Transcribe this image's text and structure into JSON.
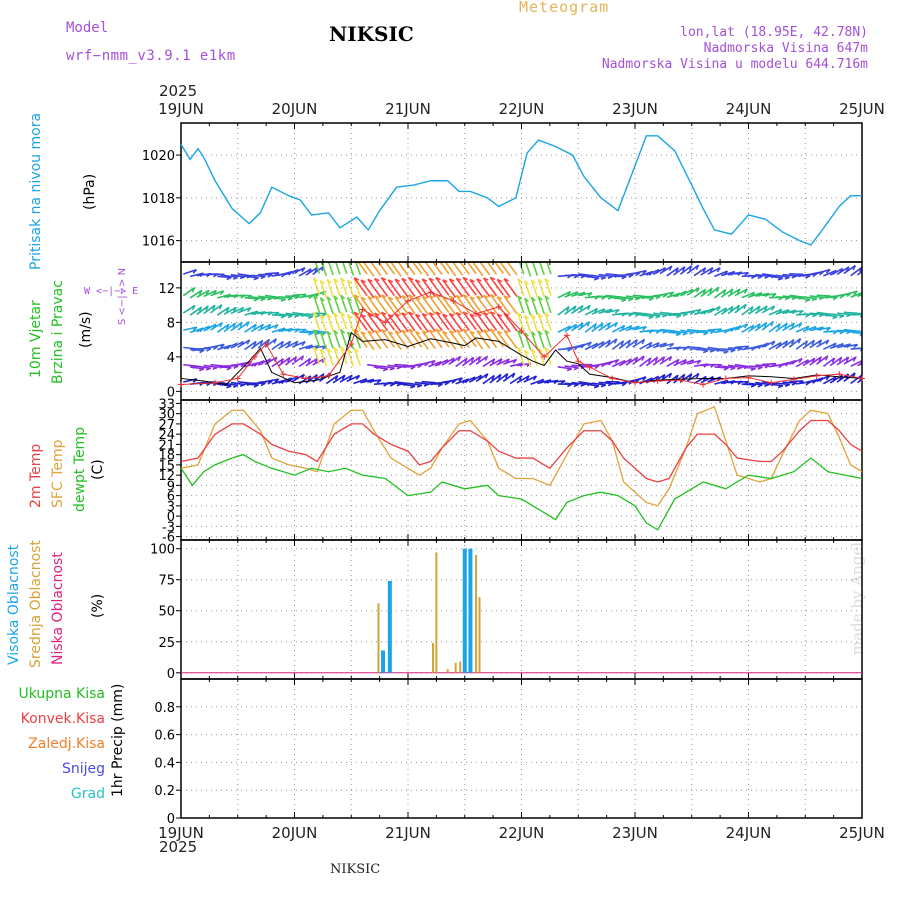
{
  "header": {
    "title": "NIKSIC",
    "product": "Meteogram",
    "model_label": "Model",
    "model_name": "wrf−nmm_v3.9.1  e1km",
    "lonlat": "lon,lat (18.95E, 42.78N)",
    "elevation": "Nadmorska Visina 647m",
    "model_elevation": "Nadmorska Visina u modelu 644.716m"
  },
  "year_top": "2025",
  "year_bottom": "2025",
  "footer_station": "NIKSIC",
  "credit": "made by Angel",
  "days": [
    "19JUN",
    "20JUN",
    "21JUN",
    "22JUN",
    "23JUN",
    "24JUN",
    "25JUN"
  ],
  "colors": {
    "pressure": "#1ba4e6",
    "temp2m": "#ec4040",
    "sfc": "#e3a13a",
    "dew": "#22c021",
    "high_cloud": "#1ba4e6",
    "mid_cloud": "#d8a135",
    "low_cloud": "#e0227a",
    "wind_line": "#000000",
    "gust": "#ee3030",
    "purple": "#a450d8"
  },
  "panel_labels": {
    "pressure": {
      "name": "Pritisak na nivou mora",
      "unit": "(hPa)"
    },
    "wind": {
      "name1": "10m Vjetar",
      "name2": "Brzina i Pravac",
      "unit": "(m/s)",
      "compass": "W  <−|−>  E",
      "compass2": "S <−|−> N"
    },
    "temp": {
      "name1": "2m Temp",
      "name2": "SFC Temp",
      "name3": "dewpt Temp",
      "unit": "(C)"
    },
    "cloud": {
      "name1": "Visoka Oblacnost",
      "name2": "Srednja Oblacnost",
      "name3": "Niska Oblacnost",
      "unit": "(%)"
    },
    "precip": {
      "items": [
        "Ukupna Kisa",
        "Konvek.Kisa",
        "Zaledj.Kisa",
        "Snijeg",
        "Grad"
      ],
      "colors": [
        "#22c021",
        "#ec4040",
        "#f07f28",
        "#4b4be0",
        "#25c4c4"
      ],
      "unit": "1hr Precip (mm)"
    }
  },
  "chart_data": [
    {
      "type": "line",
      "title": "",
      "ylabel": "Pritisak na nivou mora (hPa)",
      "ylim": [
        1015,
        1021.5
      ],
      "yticks": [
        "1016",
        "1018",
        "1020"
      ],
      "x_unit": "days from 19JUN 00",
      "series": [
        {
          "name": "Pritisak na nivou mora",
          "x": [
            0,
            0.08,
            0.15,
            0.2,
            0.3,
            0.45,
            0.6,
            0.7,
            0.8,
            0.95,
            1.05,
            1.15,
            1.3,
            1.4,
            1.55,
            1.65,
            1.75,
            1.9,
            2.05,
            2.2,
            2.35,
            2.45,
            2.55,
            2.7,
            2.8,
            2.95,
            3.05,
            3.15,
            3.3,
            3.45,
            3.55,
            3.7,
            3.85,
            4.0,
            4.1,
            4.2,
            4.35,
            4.5,
            4.6,
            4.7,
            4.85,
            5.0,
            5.15,
            5.3,
            5.45,
            5.55,
            5.65,
            5.8,
            5.9,
            6.0
          ],
          "y": [
            1020.5,
            1019.8,
            1020.3,
            1019.9,
            1018.8,
            1017.5,
            1016.8,
            1017.3,
            1018.5,
            1018.1,
            1017.9,
            1017.2,
            1017.3,
            1016.6,
            1017.1,
            1016.5,
            1017.4,
            1018.5,
            1018.6,
            1018.8,
            1018.8,
            1018.3,
            1018.3,
            1018.0,
            1017.6,
            1018.0,
            1020.1,
            1020.7,
            1020.4,
            1020.0,
            1019.0,
            1018.0,
            1017.4,
            1019.5,
            1020.9,
            1020.9,
            1020.2,
            1018.6,
            1017.5,
            1016.5,
            1016.3,
            1017.2,
            1017.0,
            1016.4,
            1016.0,
            1015.8,
            1016.5,
            1017.6,
            1018.1,
            1018.1
          ]
        }
      ]
    },
    {
      "type": "line",
      "title": "",
      "ylabel": "10m Vjetar Brzina i Pravac (m/s)",
      "ylim": [
        -1,
        15
      ],
      "yticks": [
        "0",
        "4",
        "8",
        "12"
      ],
      "x_unit": "days from 19JUN 00",
      "series": [
        {
          "name": "Brzina",
          "x": [
            0,
            0.2,
            0.4,
            0.6,
            0.7,
            0.8,
            1.0,
            1.2,
            1.4,
            1.5,
            1.6,
            1.8,
            2.0,
            2.2,
            2.4,
            2.5,
            2.6,
            2.8,
            3.0,
            3.1,
            3.2,
            3.3,
            3.4,
            3.5,
            3.6,
            3.8,
            4.0,
            4.2,
            4.4,
            4.6,
            4.8,
            5.0,
            5.2,
            5.4,
            5.6,
            5.8,
            6.0
          ],
          "y": [
            1.5,
            1.2,
            0.8,
            3.5,
            5.0,
            2.2,
            1.0,
            1.3,
            2.2,
            6.8,
            5.8,
            6.0,
            5.2,
            6.1,
            5.6,
            5.3,
            6.2,
            5.8,
            4.2,
            3.5,
            3.0,
            4.8,
            3.5,
            3.2,
            2.0,
            1.6,
            1.0,
            1.3,
            1.4,
            1.5,
            1.5,
            1.8,
            1.7,
            1.5,
            1.9,
            1.7,
            1.5
          ]
        },
        {
          "name": "Udari",
          "x": [
            0,
            0.3,
            0.5,
            0.65,
            0.75,
            0.9,
            1.1,
            1.3,
            1.5,
            1.6,
            1.8,
            2.0,
            2.2,
            2.4,
            2.6,
            2.8,
            3.0,
            3.2,
            3.4,
            3.5,
            3.6,
            3.8,
            4.0,
            4.2,
            4.4,
            4.6,
            4.8,
            5.0,
            5.2,
            5.4,
            5.6,
            5.8,
            6.0
          ],
          "y": [
            0.8,
            1.0,
            1.5,
            4.0,
            5.5,
            2.0,
            1.5,
            1.8,
            5.5,
            9.5,
            8.0,
            10.5,
            11.5,
            10.5,
            9.0,
            9.8,
            7.0,
            4.0,
            6.5,
            3.5,
            2.8,
            1.5,
            1.0,
            1.2,
            1.3,
            0.8,
            1.5,
            1.6,
            1.0,
            1.4,
            1.8,
            2.0,
            1.5
          ]
        }
      ]
    },
    {
      "type": "line",
      "title": "",
      "ylabel": "Temp (C)",
      "ylim": [
        -7,
        34
      ],
      "yticks": [
        "-6",
        "-3",
        "0",
        "3",
        "6",
        "9",
        "12",
        "15",
        "18",
        "21",
        "24",
        "27",
        "30",
        "33"
      ],
      "x_unit": "days from 19JUN 00",
      "series": [
        {
          "name": "2m Temp",
          "x": [
            0,
            0.15,
            0.3,
            0.45,
            0.55,
            0.7,
            0.8,
            0.95,
            1.1,
            1.2,
            1.35,
            1.5,
            1.6,
            1.7,
            1.85,
            2.0,
            2.1,
            2.2,
            2.3,
            2.45,
            2.55,
            2.7,
            2.8,
            2.95,
            3.1,
            3.25,
            3.4,
            3.55,
            3.7,
            3.8,
            3.9,
            4.1,
            4.2,
            4.3,
            4.45,
            4.55,
            4.7,
            4.8,
            4.9,
            5.1,
            5.2,
            5.3,
            5.45,
            5.55,
            5.7,
            5.8,
            5.9,
            6.0
          ],
          "y": [
            16,
            17,
            24,
            27,
            27,
            24,
            21,
            19,
            18,
            16,
            24,
            27,
            27,
            24,
            21,
            19,
            15,
            16,
            20,
            25,
            25,
            22,
            19,
            17,
            17,
            14,
            20,
            25,
            25,
            22,
            17,
            11,
            10,
            11,
            20,
            24,
            24,
            21,
            17,
            16,
            16,
            19,
            25,
            28,
            28,
            25,
            21,
            19
          ]
        },
        {
          "name": "SFC Temp",
          "x": [
            0,
            0.15,
            0.3,
            0.45,
            0.55,
            0.7,
            0.8,
            0.95,
            1.1,
            1.2,
            1.35,
            1.5,
            1.6,
            1.7,
            1.85,
            2.0,
            2.1,
            2.2,
            2.3,
            2.45,
            2.55,
            2.7,
            2.8,
            2.95,
            3.1,
            3.25,
            3.4,
            3.55,
            3.7,
            3.8,
            3.9,
            4.1,
            4.2,
            4.3,
            4.45,
            4.55,
            4.7,
            4.8,
            4.9,
            5.1,
            5.2,
            5.3,
            5.45,
            5.55,
            5.7,
            5.8,
            5.9,
            6.0
          ],
          "y": [
            14,
            15,
            27,
            31,
            31,
            25,
            17,
            15,
            14,
            13,
            27,
            31,
            31,
            25,
            17,
            14,
            12,
            14,
            20,
            27,
            28,
            22,
            14,
            11,
            11,
            9,
            18,
            27,
            28,
            22,
            10,
            4,
            3,
            8,
            20,
            30,
            32,
            22,
            12,
            10,
            11,
            18,
            28,
            31,
            30,
            23,
            15,
            13
          ]
        },
        {
          "name": "dewpt Temp",
          "x": [
            0,
            0.1,
            0.2,
            0.3,
            0.45,
            0.55,
            0.65,
            0.8,
            1.0,
            1.15,
            1.3,
            1.45,
            1.6,
            1.8,
            2.0,
            2.2,
            2.3,
            2.5,
            2.7,
            2.8,
            3.0,
            3.2,
            3.3,
            3.4,
            3.55,
            3.7,
            3.85,
            4.0,
            4.1,
            4.2,
            4.35,
            4.5,
            4.6,
            4.8,
            5.0,
            5.2,
            5.4,
            5.55,
            5.7,
            5.85,
            6.0
          ],
          "y": [
            14,
            9,
            13,
            15,
            17,
            18,
            16,
            14,
            12,
            14,
            13,
            14,
            12,
            11,
            6,
            7,
            10,
            8,
            9,
            6,
            5,
            1,
            -1,
            4,
            6,
            7,
            6,
            3,
            -2,
            -4,
            5,
            8,
            10,
            8,
            12,
            11,
            13,
            17,
            13,
            12,
            11
          ]
        }
      ]
    },
    {
      "type": "bar",
      "title": "",
      "ylabel": "Oblacnost (%)",
      "ylim": [
        -5,
        107
      ],
      "yticks": [
        "0",
        "25",
        "50",
        "75",
        "100"
      ],
      "x_unit": "days from 19JUN 00",
      "series": [
        {
          "name": "Visoka Oblacnost",
          "x": [
            1.78,
            1.84,
            2.5,
            2.55
          ],
          "values": [
            18,
            74,
            100,
            100
          ]
        },
        {
          "name": "Srednja Oblacnost",
          "x": [
            1.74,
            2.22,
            2.25,
            2.35,
            2.42,
            2.46,
            2.6,
            2.63
          ],
          "values": [
            56,
            24,
            97,
            3,
            8,
            9,
            95,
            61
          ]
        },
        {
          "name": "Niska Oblacnost",
          "x": [],
          "values": []
        }
      ]
    },
    {
      "type": "bar",
      "title": "",
      "ylabel": "1hr Precip (mm)",
      "ylim": [
        0,
        1.0
      ],
      "yticks": [
        "0",
        "0.2",
        "0.4",
        "0.6",
        "0.8"
      ],
      "x_unit": "days from 19JUN 00",
      "series": [
        {
          "name": "Ukupna Kisa",
          "x": [],
          "values": []
        }
      ]
    }
  ]
}
